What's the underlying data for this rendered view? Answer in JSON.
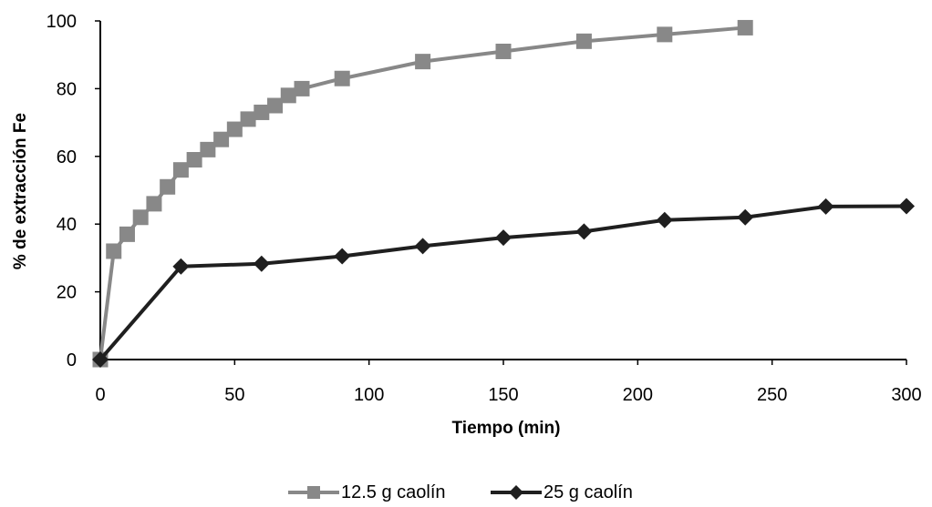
{
  "chart_data": {
    "type": "line",
    "title": "",
    "xlabel": "Tiempo (min)",
    "ylabel": "% de extracción Fe",
    "xlim": [
      0,
      300
    ],
    "ylim": [
      0,
      100
    ],
    "xticks": [
      0,
      50,
      100,
      150,
      200,
      250,
      300
    ],
    "yticks": [
      0,
      20,
      40,
      60,
      80,
      100
    ],
    "grid": false,
    "legend_position": "bottom",
    "series": [
      {
        "name": "12.5 g caolín",
        "color": "#888888",
        "marker": "square",
        "x": [
          0,
          5,
          10,
          15,
          20,
          25,
          30,
          35,
          40,
          45,
          50,
          55,
          60,
          65,
          70,
          75,
          90,
          120,
          150,
          180,
          210,
          240
        ],
        "y": [
          0,
          32,
          37,
          42,
          46,
          51,
          56,
          59,
          62,
          65,
          68,
          71,
          73,
          75,
          78,
          80,
          83,
          88,
          91,
          94,
          96,
          98
        ]
      },
      {
        "name": "25 g caolín",
        "color": "#1f1f1f",
        "marker": "diamond",
        "x": [
          0,
          30,
          60,
          90,
          120,
          150,
          180,
          210,
          240,
          270,
          300
        ],
        "y": [
          0,
          27.5,
          28.3,
          30.5,
          33.5,
          36,
          37.8,
          41.2,
          42,
          45.2,
          45.3
        ]
      }
    ]
  }
}
